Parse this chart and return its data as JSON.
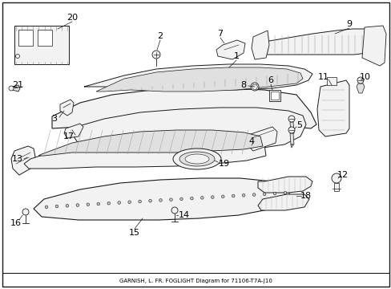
{
  "background_color": "#ffffff",
  "border_color": "#000000",
  "text_color": "#000000",
  "subtitle": "GARNISH, L. FR. FOGLIGHT Diagram for 71106-T7A-J10",
  "fig_width": 4.89,
  "fig_height": 3.6,
  "dpi": 100,
  "line_color": "#1a1a1a",
  "fill_light": "#f2f2f2",
  "fill_med": "#e0e0e0",
  "fill_dark": "#c8c8c8",
  "hatch_color": "#888888",
  "font_size": 8,
  "font_size_sub": 5.0
}
